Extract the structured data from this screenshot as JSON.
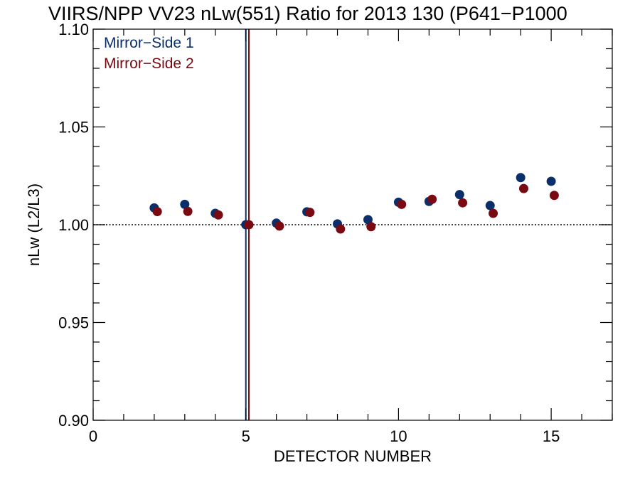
{
  "chart_data": {
    "type": "scatter",
    "title": "VIIRS/NPP VV23 nLw(551) Ratio for 2013 130 (P641−P1000",
    "xlabel": "DETECTOR NUMBER",
    "ylabel": "nLw (L2/L3)",
    "xlim": [
      0,
      17
    ],
    "ylim": [
      0.9,
      1.1
    ],
    "x_ticks": [
      0,
      5,
      10,
      15
    ],
    "x_tick_labels": [
      "0",
      "5",
      "10",
      "15"
    ],
    "x_minor_step": 1,
    "y_ticks": [
      0.9,
      0.95,
      1.0,
      1.05,
      1.1
    ],
    "y_tick_labels": [
      "0.90",
      "0.95",
      "1.00",
      "1.05",
      "1.10"
    ],
    "y_minor_step": 0.01,
    "reference_line_y": 1.0,
    "legend_position": "top-left",
    "series": [
      {
        "name": "Mirror−Side 1",
        "color": "#0a2f6a",
        "x": [
          2,
          3,
          4,
          5,
          6,
          7,
          8,
          9,
          10,
          11,
          12,
          13,
          14,
          15
        ],
        "y": [
          1.0086,
          1.0104,
          1.0058,
          1.0,
          1.0008,
          1.0066,
          1.0004,
          1.0026,
          1.0115,
          1.0119,
          1.0154,
          1.0098,
          1.0241,
          1.0222
        ],
        "vline_x": 5.0
      },
      {
        "name": "Mirror−Side 2",
        "color": "#7a0a12",
        "x": [
          2.1,
          3.1,
          4.1,
          5.1,
          6.1,
          7.1,
          8.1,
          9.1,
          10.1,
          11.1,
          12.1,
          13.1,
          14.1,
          15.1
        ],
        "y": [
          1.0067,
          1.0068,
          1.005,
          1.0,
          0.9993,
          1.0063,
          0.9978,
          0.999,
          1.0104,
          1.013,
          1.0112,
          1.0058,
          1.0185,
          1.015
        ],
        "vline_x": 5.1
      }
    ]
  }
}
